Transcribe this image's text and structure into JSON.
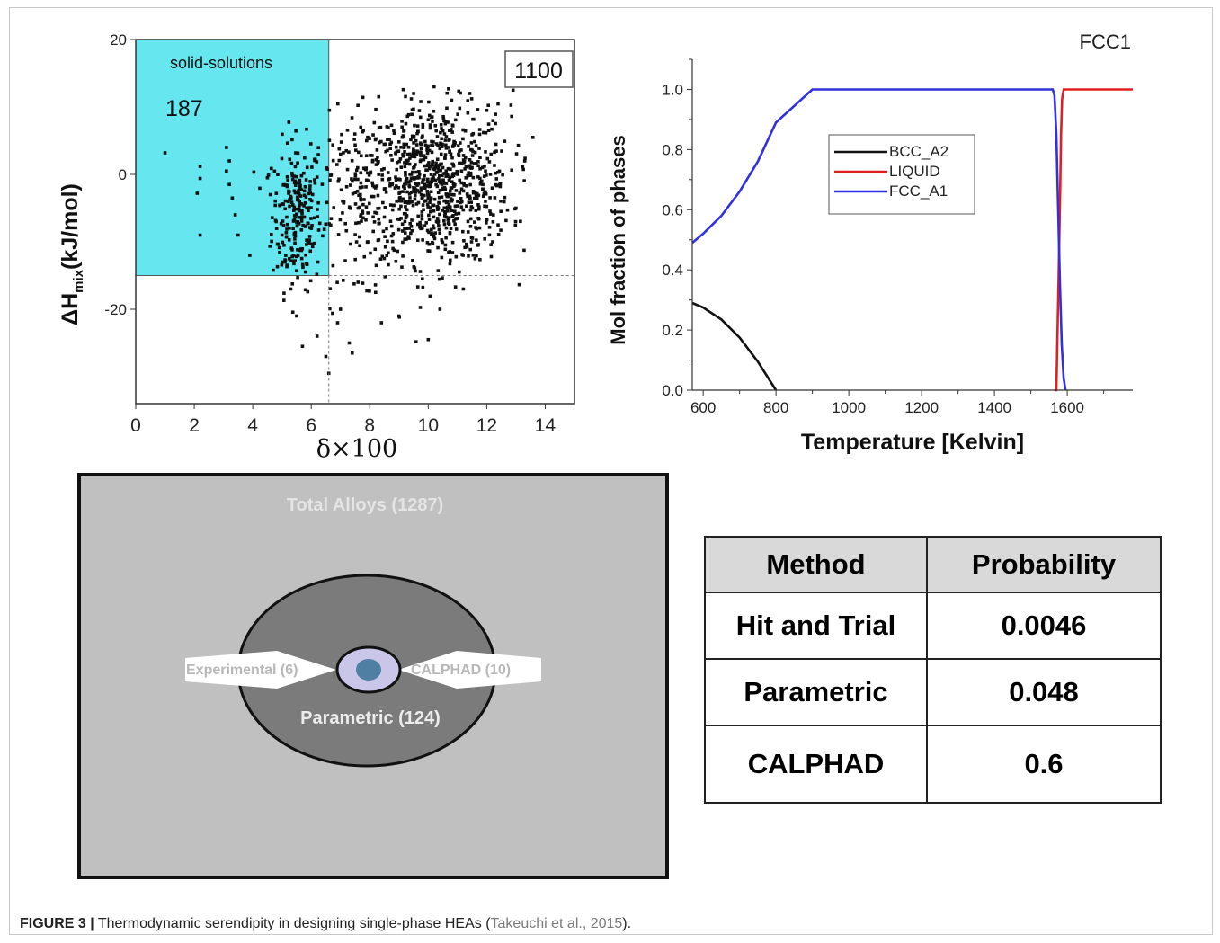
{
  "chart_data": [
    {
      "type": "scatter",
      "xlabel": "δ×100",
      "ylabel": "ΔHmix(kJ/mol)",
      "xlim": [
        0,
        15
      ],
      "ylim": [
        -34,
        20
      ],
      "x_ticks": [
        "0",
        "2",
        "4",
        "6",
        "8",
        "10",
        "12",
        "14"
      ],
      "y_ticks": [
        "20",
        "0",
        "-20"
      ],
      "region_label": "solid-solutions",
      "region_count": "187",
      "total_count": "1100",
      "region_bounds": {
        "delta_max": 6.6,
        "dh_min": -15
      },
      "region_color": "#66e6ee",
      "points": [
        [
          1.0,
          3.2
        ],
        [
          2.2,
          -0.6
        ],
        [
          2.2,
          1.2
        ],
        [
          2.1,
          -2.8
        ],
        [
          2.2,
          -9.0
        ],
        [
          3.1,
          4.0
        ],
        [
          3.2,
          2.0
        ],
        [
          3.1,
          0.5
        ],
        [
          3.2,
          -1.5
        ],
        [
          3.3,
          -3.5
        ],
        [
          3.4,
          -6.0
        ],
        [
          3.5,
          -9.0
        ],
        [
          3.9,
          -12.0
        ],
        [
          4.5,
          -0.5
        ],
        [
          4.6,
          -3.0
        ],
        [
          4.8,
          -7.0
        ],
        [
          5.0,
          -9.0
        ],
        [
          5.1,
          -13.0
        ],
        [
          5.3,
          -17.0
        ],
        [
          5.5,
          -21.0
        ],
        [
          5.7,
          -25.5
        ],
        [
          6.2,
          -24.0
        ],
        [
          6.5,
          -27.0
        ],
        [
          6.6,
          -29.5
        ],
        [
          6.9,
          -22.0
        ],
        [
          7.0,
          -20.0
        ],
        [
          7.3,
          -25.0
        ],
        [
          7.4,
          -26.5
        ],
        [
          7.6,
          -16.0
        ],
        [
          8.2,
          -17.5
        ],
        [
          8.4,
          -22.0
        ],
        [
          9.0,
          -21.0
        ],
        [
          10.0,
          -24.5
        ],
        [
          10.4,
          -20.0
        ],
        [
          10.2,
          13.0
        ],
        [
          9.5,
          12.0
        ],
        [
          10.8,
          11.0
        ],
        [
          12.0,
          9.5
        ],
        [
          12.9,
          12.5
        ],
        [
          13.3,
          2.0
        ],
        [
          13.0,
          -5.0
        ],
        [
          11.6,
          -12.5
        ],
        [
          12.2,
          -10.0
        ],
        [
          8.7,
          4.5
        ],
        [
          8.2,
          -2.0
        ],
        [
          7.2,
          3.5
        ],
        [
          11.2,
          -17.0
        ],
        [
          9.8,
          -15.5
        ]
      ],
      "clusters": [
        {
          "cx": 5.5,
          "cy": -6.0,
          "sx": 0.42,
          "sy": 5.5,
          "n": 230
        },
        {
          "cx": 10.3,
          "cy": -1.5,
          "sx": 1.25,
          "sy": 5.8,
          "n": 820
        },
        {
          "cx": 8.0,
          "cy": -3.0,
          "sx": 1.0,
          "sy": 6.0,
          "n": 180
        }
      ]
    },
    {
      "type": "line",
      "title": "FCC1",
      "xlabel": "Temperature [Kelvin]",
      "ylabel": "Mol fraction of phases",
      "xlim": [
        570,
        1780
      ],
      "ylim": [
        0,
        1.1
      ],
      "x_ticks": [
        "600",
        "800",
        "1000",
        "1200",
        "1400",
        "1600"
      ],
      "y_ticks": [
        "0.0",
        "0.2",
        "0.4",
        "0.6",
        "0.8",
        "1.0"
      ],
      "legend_position": "upper-middle",
      "series": [
        {
          "name": "BCC_A2",
          "color": "#111111",
          "x": [
            570,
            600,
            650,
            700,
            750,
            800
          ],
          "y": [
            0.29,
            0.275,
            0.235,
            0.175,
            0.095,
            0.0
          ]
        },
        {
          "name": "LIQUID",
          "color": "#e02020",
          "x": [
            1565,
            1570,
            1575,
            1580,
            1583,
            1586,
            1590,
            1600,
            1650,
            1700,
            1780
          ],
          "y": [
            0.0,
            0.0,
            0.3,
            0.62,
            0.85,
            0.97,
            1.0,
            1.0,
            1.0,
            1.0,
            1.0
          ]
        },
        {
          "name": "FCC_A1",
          "color": "#3030e0",
          "x": [
            570,
            600,
            650,
            700,
            750,
            800,
            900,
            1000,
            1200,
            1400,
            1560,
            1565,
            1570,
            1575,
            1580,
            1585,
            1590,
            1595
          ],
          "y": [
            0.49,
            0.52,
            0.58,
            0.66,
            0.76,
            0.89,
            1.0,
            1.0,
            1.0,
            1.0,
            1.0,
            0.98,
            0.85,
            0.6,
            0.35,
            0.15,
            0.04,
            0.0
          ]
        }
      ]
    }
  ],
  "venn": {
    "total_label": "Total Alloys (1287)",
    "parametric_label": "Parametric (124)",
    "experimental_label": "Experimental (6)",
    "calphad_label": "CALPHAD (10)",
    "colors": {
      "outer": "#c0c0c0",
      "middle": "#7b7b7b",
      "inner": "#c9c6ea",
      "core": "#4f7fa3"
    }
  },
  "table": {
    "headers": [
      "Method",
      "Probability"
    ],
    "rows": [
      [
        "Hit and Trial",
        "0.0046"
      ],
      [
        "Parametric",
        "0.048"
      ],
      [
        "CALPHAD",
        "0.6"
      ]
    ]
  },
  "caption": {
    "label": "FIGURE 3 |",
    "text": " Thermodynamic serendipity in designing single-phase HEAs (",
    "ref": "Takeuchi et al., 2015",
    "end": ")."
  }
}
